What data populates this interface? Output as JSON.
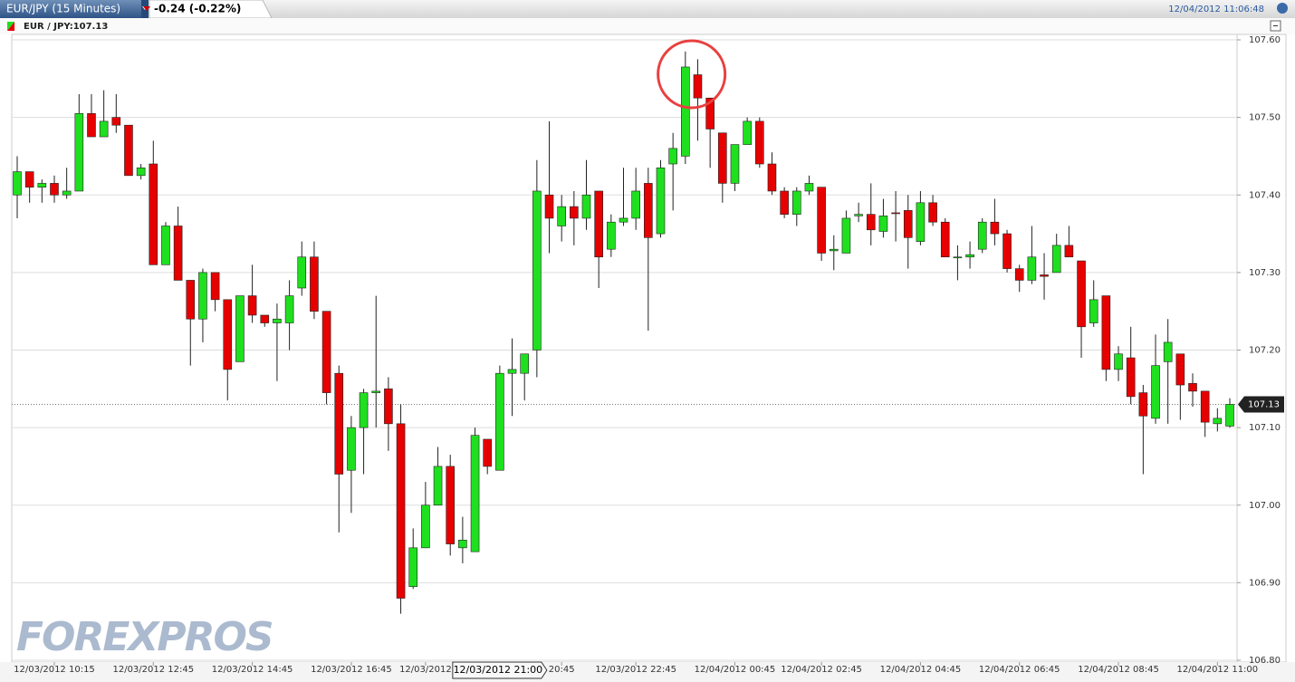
{
  "chart_data": {
    "type": "candlestick",
    "title": "EUR/JPY (15 Minutes)",
    "change": "-0.24 (-0.22%)",
    "timestamp": "12/04/2012 11:06:48",
    "legend": "EUR / JPY:107.13",
    "watermark": "FOREXPROS",
    "crosshair_label": "12/03/2012 21:00",
    "last_price": 107.13,
    "up_color": "#1fe01f",
    "down_color": "#e60000",
    "grid": true,
    "ylim": [
      106.8,
      107.6
    ],
    "yticks": [
      {
        "value": 106.8,
        "label": "106.80"
      },
      {
        "value": 106.9,
        "label": "106.90"
      },
      {
        "value": 107.0,
        "label": "107.00"
      },
      {
        "value": 107.1,
        "label": "107.10"
      },
      {
        "value": 107.2,
        "label": "107.20"
      },
      {
        "value": 107.3,
        "label": "107.30"
      },
      {
        "value": 107.4,
        "label": "107.40"
      },
      {
        "value": 107.5,
        "label": "107.50"
      },
      {
        "value": 107.6,
        "label": "107.60"
      }
    ],
    "categories": [
      null,
      null,
      null,
      "12/03/2012 10:15",
      null,
      null,
      null,
      null,
      null,
      null,
      null,
      "12/03/2012 12:45",
      null,
      null,
      null,
      null,
      null,
      null,
      null,
      "12/03/2012 14:45",
      null,
      null,
      null,
      null,
      null,
      null,
      null,
      "12/03/2012 16:45",
      null,
      null,
      null,
      null,
      null,
      "12/03/2012",
      null,
      null,
      null,
      null,
      null,
      null,
      null,
      null,
      null,
      null,
      "20:45",
      null,
      null,
      null,
      null,
      null,
      "12/03/2012 22:45",
      null,
      null,
      null,
      null,
      null,
      null,
      null,
      "12/04/2012 00:45",
      null,
      null,
      null,
      null,
      null,
      null,
      "12/04/2012 02:45",
      null,
      null,
      null,
      null,
      null,
      null,
      null,
      "12/04/2012 04:45",
      null,
      null,
      null,
      null,
      null,
      null,
      null,
      "12/04/2012 06:45",
      null,
      null,
      null,
      null,
      null,
      null,
      null,
      "12/04/2012 08:45",
      null,
      null,
      null,
      null,
      null,
      null,
      null,
      "12/04/2012 11:00",
      null
    ],
    "open": [
      107.4,
      107.43,
      107.41,
      107.415,
      107.4,
      107.405,
      107.505,
      107.475,
      107.5,
      107.49,
      107.425,
      107.44,
      107.31,
      107.36,
      107.29,
      107.24,
      107.3,
      107.265,
      107.185,
      107.27,
      107.245,
      107.235,
      107.235,
      107.28,
      107.32,
      107.25,
      107.17,
      107.045,
      107.1,
      107.145,
      107.15,
      107.105,
      106.895,
      106.945,
      107.0,
      107.05,
      106.945,
      106.94,
      107.085,
      107.045,
      107.17,
      107.17,
      107.2,
      107.4,
      107.36,
      107.385,
      107.37,
      107.405,
      107.33,
      107.365,
      107.37,
      107.415,
      107.35,
      107.44,
      107.45,
      107.555,
      107.525,
      107.48,
      107.415,
      107.465,
      107.495,
      107.44,
      107.405,
      107.375,
      107.405,
      107.41,
      107.328,
      107.325,
      107.373,
      107.375,
      107.353,
      107.377,
      107.38,
      107.34,
      107.39,
      107.365,
      107.32,
      107.32,
      107.33,
      107.365,
      107.35,
      107.305,
      107.29,
      107.297,
      107.3,
      107.335,
      107.315,
      107.235,
      107.27,
      107.175,
      107.19,
      107.145,
      107.112,
      107.185,
      107.195,
      107.157,
      107.147,
      107.105,
      107.102
    ],
    "high": [
      107.45,
      107.43,
      107.42,
      107.425,
      107.435,
      107.53,
      107.53,
      107.535,
      107.53,
      107.49,
      107.44,
      107.47,
      107.365,
      107.385,
      107.29,
      107.305,
      107.3,
      107.265,
      107.27,
      107.31,
      107.245,
      107.26,
      107.29,
      107.34,
      107.34,
      107.25,
      107.18,
      107.115,
      107.15,
      107.27,
      107.165,
      107.13,
      106.97,
      107.03,
      107.075,
      107.065,
      106.985,
      107.1,
      107.085,
      107.18,
      107.215,
      107.195,
      107.445,
      107.495,
      107.4,
      107.405,
      107.445,
      107.405,
      107.375,
      107.435,
      107.435,
      107.435,
      107.445,
      107.48,
      107.585,
      107.575,
      107.525,
      107.48,
      107.465,
      107.5,
      107.5,
      107.455,
      107.41,
      107.41,
      107.425,
      107.41,
      107.348,
      107.38,
      107.39,
      107.415,
      107.395,
      107.405,
      107.4,
      107.405,
      107.4,
      107.37,
      107.335,
      107.34,
      107.37,
      107.395,
      107.355,
      107.31,
      107.36,
      107.325,
      107.35,
      107.36,
      107.315,
      107.29,
      107.27,
      107.205,
      107.23,
      107.155,
      107.22,
      107.24,
      107.195,
      107.17,
      107.147,
      107.125,
      107.138
    ],
    "low": [
      107.37,
      107.39,
      107.39,
      107.39,
      107.395,
      107.405,
      107.475,
      107.475,
      107.48,
      107.425,
      107.42,
      107.31,
      107.31,
      107.29,
      107.18,
      107.21,
      107.25,
      107.135,
      107.185,
      107.235,
      107.23,
      107.16,
      107.2,
      107.27,
      107.24,
      107.13,
      106.965,
      106.99,
      107.04,
      107.1,
      107.07,
      106.86,
      106.892,
      106.945,
      107.0,
      106.935,
      106.925,
      106.94,
      107.04,
      107.045,
      107.115,
      107.135,
      107.165,
      107.325,
      107.34,
      107.335,
      107.355,
      107.28,
      107.32,
      107.36,
      107.355,
      107.225,
      107.345,
      107.38,
      107.44,
      107.47,
      107.435,
      107.39,
      107.405,
      107.465,
      107.435,
      107.4,
      107.37,
      107.36,
      107.4,
      107.315,
      107.303,
      107.325,
      107.365,
      107.335,
      107.345,
      107.34,
      107.305,
      107.335,
      107.36,
      107.32,
      107.29,
      107.305,
      107.325,
      107.335,
      107.3,
      107.275,
      107.285,
      107.265,
      107.3,
      107.32,
      107.19,
      107.23,
      107.16,
      107.16,
      107.13,
      107.04,
      107.105,
      107.105,
      107.11,
      107.127,
      107.088,
      107.095,
      107.1
    ],
    "close": [
      107.43,
      107.41,
      107.415,
      107.4,
      107.405,
      107.505,
      107.475,
      107.495,
      107.49,
      107.425,
      107.435,
      107.31,
      107.36,
      107.29,
      107.24,
      107.3,
      107.265,
      107.175,
      107.27,
      107.245,
      107.235,
      107.24,
      107.27,
      107.32,
      107.25,
      107.145,
      107.04,
      107.1,
      107.145,
      107.147,
      107.105,
      106.88,
      106.945,
      107.0,
      107.05,
      106.95,
      106.955,
      107.09,
      107.05,
      107.17,
      107.175,
      107.195,
      107.405,
      107.37,
      107.385,
      107.37,
      107.4,
      107.32,
      107.365,
      107.37,
      107.405,
      107.345,
      107.435,
      107.46,
      107.565,
      107.525,
      107.485,
      107.415,
      107.465,
      107.495,
      107.44,
      107.405,
      107.375,
      107.405,
      107.415,
      107.325,
      107.33,
      107.37,
      107.375,
      107.355,
      107.373,
      107.376,
      107.345,
      107.39,
      107.365,
      107.32,
      107.32,
      107.323,
      107.365,
      107.35,
      107.305,
      107.29,
      107.32,
      107.295,
      107.335,
      107.32,
      107.23,
      107.265,
      107.175,
      107.195,
      107.14,
      107.115,
      107.18,
      107.21,
      107.155,
      107.147,
      107.107,
      107.112,
      107.13
    ]
  }
}
